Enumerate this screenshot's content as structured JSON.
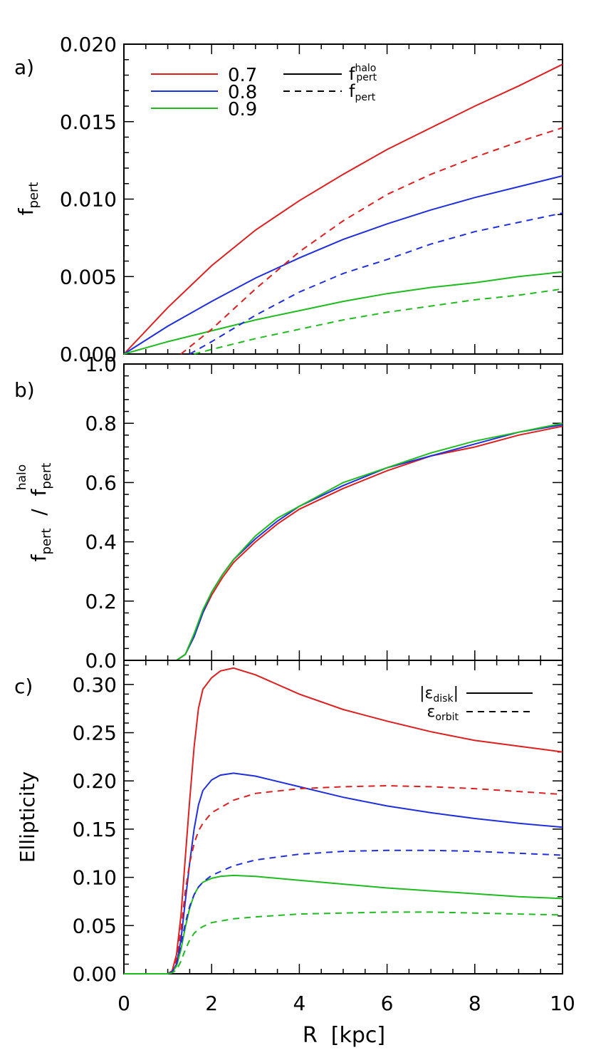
{
  "figure": {
    "xlabel": "R  [kpc]",
    "xlim": [
      0,
      10
    ],
    "xticks": [
      "0",
      "2",
      "4",
      "6",
      "8",
      "10"
    ]
  },
  "colors": {
    "0.7": "#dd1f1f",
    "0.8": "#1f2fdd",
    "0.9": "#1fbb1f"
  },
  "chart_data": [
    {
      "panel_label": "a)",
      "type": "line",
      "ylabel": "f_pert",
      "ylabel_main": "f",
      "ylabel_sub": "pert",
      "ylim": [
        0.0,
        0.02
      ],
      "yticks": [
        "0.000",
        "0.005",
        "0.010",
        "0.015",
        "0.020"
      ],
      "legend": {
        "colors": [
          {
            "label": "0.7",
            "color": "#dd1f1f"
          },
          {
            "label": "0.8",
            "color": "#1f2fdd"
          },
          {
            "label": "0.9",
            "color": "#1fbb1f"
          }
        ],
        "styles": [
          {
            "main": "f",
            "sup": "halo",
            "sub": "pert",
            "dash": "solid"
          },
          {
            "main": "f",
            "sup": "",
            "sub": "pert",
            "dash": "dashed"
          }
        ],
        "placement": "top-left"
      },
      "series": [
        {
          "name": "0.7",
          "style": "solid",
          "x": [
            0,
            1,
            2,
            3,
            4,
            5,
            6,
            7,
            8,
            9,
            10
          ],
          "y": [
            0,
            0.003,
            0.0057,
            0.008,
            0.0099,
            0.0116,
            0.0132,
            0.0146,
            0.016,
            0.0173,
            0.0187
          ]
        },
        {
          "name": "0.8",
          "style": "solid",
          "x": [
            0,
            1,
            2,
            3,
            4,
            5,
            6,
            7,
            8,
            9,
            10
          ],
          "y": [
            0,
            0.0018,
            0.0034,
            0.0049,
            0.0062,
            0.0074,
            0.0084,
            0.0093,
            0.0101,
            0.0108,
            0.0115
          ]
        },
        {
          "name": "0.9",
          "style": "solid",
          "x": [
            0,
            1,
            2,
            3,
            4,
            5,
            6,
            7,
            8,
            9,
            10
          ],
          "y": [
            0,
            0.0008,
            0.0015,
            0.0022,
            0.0028,
            0.0034,
            0.0039,
            0.0043,
            0.0046,
            0.005,
            0.0053
          ]
        },
        {
          "name": "0.7",
          "style": "dashed",
          "x": [
            1.3,
            2,
            3,
            4,
            5,
            6,
            7,
            8,
            9,
            10
          ],
          "y": [
            0,
            0.0016,
            0.0042,
            0.0066,
            0.0086,
            0.0103,
            0.0116,
            0.0127,
            0.0137,
            0.0146
          ]
        },
        {
          "name": "0.8",
          "style": "dashed",
          "x": [
            1.5,
            2,
            3,
            4,
            5,
            6,
            7,
            8,
            9,
            10
          ],
          "y": [
            0,
            0.0008,
            0.0025,
            0.004,
            0.0052,
            0.0061,
            0.0071,
            0.0079,
            0.0085,
            0.0091
          ]
        },
        {
          "name": "0.9",
          "style": "dashed",
          "x": [
            1.6,
            2,
            3,
            4,
            5,
            6,
            7,
            8,
            9,
            10
          ],
          "y": [
            0,
            0.0003,
            0.001,
            0.0016,
            0.0022,
            0.0027,
            0.0031,
            0.0035,
            0.0038,
            0.0042
          ]
        }
      ]
    },
    {
      "panel_label": "b)",
      "type": "line",
      "ylabel": "f_pert / f_pert^halo",
      "ylim": [
        0.0,
        1.0
      ],
      "yticks": [
        "0.0",
        "0.2",
        "0.4",
        "0.6",
        "0.8",
        "1.0"
      ],
      "reference_line": 1.0,
      "series": [
        {
          "name": "0.7",
          "style": "solid",
          "x": [
            1.0,
            1.2,
            1.4,
            1.6,
            1.8,
            2.0,
            2.25,
            2.5,
            3.0,
            3.5,
            4.0,
            5.0,
            6.0,
            7.0,
            8.0,
            9.0,
            10.0
          ],
          "y": [
            0,
            0.0,
            0.02,
            0.08,
            0.16,
            0.22,
            0.28,
            0.33,
            0.4,
            0.46,
            0.51,
            0.58,
            0.64,
            0.69,
            0.72,
            0.76,
            0.79
          ]
        },
        {
          "name": "0.8",
          "style": "solid",
          "x": [
            1.0,
            1.2,
            1.4,
            1.6,
            1.8,
            2.0,
            2.25,
            2.5,
            3.0,
            3.5,
            4.0,
            5.0,
            6.0,
            7.0,
            8.0,
            9.0,
            10.0
          ],
          "y": [
            0,
            0.0,
            0.02,
            0.08,
            0.16,
            0.23,
            0.29,
            0.34,
            0.41,
            0.47,
            0.52,
            0.59,
            0.65,
            0.69,
            0.73,
            0.77,
            0.795
          ]
        },
        {
          "name": "0.9",
          "style": "solid",
          "x": [
            1.0,
            1.2,
            1.4,
            1.6,
            1.8,
            2.0,
            2.25,
            2.5,
            3.0,
            3.5,
            4.0,
            5.0,
            6.0,
            7.0,
            8.0,
            9.0,
            10.0
          ],
          "y": [
            0,
            0.0,
            0.02,
            0.09,
            0.17,
            0.23,
            0.29,
            0.34,
            0.42,
            0.48,
            0.52,
            0.6,
            0.65,
            0.7,
            0.74,
            0.77,
            0.8
          ]
        }
      ]
    },
    {
      "panel_label": "c)",
      "type": "line",
      "ylabel": "Ellipticity",
      "ylim": [
        0.0,
        0.325
      ],
      "yticks": [
        "0.00",
        "0.05",
        "0.10",
        "0.15",
        "0.20",
        "0.25",
        "0.30"
      ],
      "legend": {
        "styles": [
          {
            "label": "|ε_disk|",
            "main": "|ε",
            "sub": "disk",
            "tail": "|",
            "dash": "solid"
          },
          {
            "label": "ε_orbit",
            "main": "ε",
            "sub": "orbit",
            "tail": "",
            "dash": "dashed"
          }
        ],
        "placement": "top-right"
      },
      "series": [
        {
          "name": "0.7",
          "style": "solid",
          "x": [
            0,
            1.0,
            1.1,
            1.2,
            1.3,
            1.4,
            1.5,
            1.6,
            1.7,
            1.8,
            2.0,
            2.2,
            2.5,
            3.0,
            4.0,
            5.0,
            6.0,
            7.0,
            8.0,
            9.0,
            10.0
          ],
          "y": [
            0,
            0,
            0.003,
            0.02,
            0.06,
            0.12,
            0.18,
            0.235,
            0.275,
            0.295,
            0.307,
            0.314,
            0.317,
            0.31,
            0.29,
            0.274,
            0.262,
            0.251,
            0.242,
            0.236,
            0.23
          ]
        },
        {
          "name": "0.8",
          "style": "solid",
          "x": [
            0,
            1.0,
            1.1,
            1.2,
            1.3,
            1.4,
            1.5,
            1.6,
            1.7,
            1.8,
            2.0,
            2.2,
            2.5,
            3.0,
            4.0,
            5.0,
            6.0,
            7.0,
            8.0,
            9.0,
            10.0
          ],
          "y": [
            0,
            0,
            0.002,
            0.01,
            0.035,
            0.075,
            0.115,
            0.15,
            0.175,
            0.19,
            0.201,
            0.206,
            0.208,
            0.205,
            0.194,
            0.183,
            0.174,
            0.167,
            0.161,
            0.156,
            0.152
          ]
        },
        {
          "name": "0.9",
          "style": "solid",
          "x": [
            0,
            1.0,
            1.1,
            1.2,
            1.3,
            1.4,
            1.5,
            1.6,
            1.7,
            1.8,
            2.0,
            2.2,
            2.5,
            3.0,
            4.0,
            5.0,
            6.0,
            7.0,
            8.0,
            9.0,
            10.0
          ],
          "y": [
            0,
            0,
            0.002,
            0.008,
            0.025,
            0.048,
            0.068,
            0.082,
            0.09,
            0.095,
            0.099,
            0.101,
            0.102,
            0.101,
            0.097,
            0.093,
            0.089,
            0.086,
            0.083,
            0.08,
            0.078
          ]
        },
        {
          "name": "0.7",
          "style": "dashed",
          "x": [
            0,
            1.0,
            1.1,
            1.2,
            1.3,
            1.4,
            1.5,
            1.6,
            1.7,
            1.8,
            2.0,
            2.5,
            3.0,
            4.0,
            5.0,
            6.0,
            7.0,
            8.0,
            9.0,
            10.0
          ],
          "y": [
            0,
            0,
            0.003,
            0.015,
            0.045,
            0.085,
            0.115,
            0.135,
            0.148,
            0.156,
            0.167,
            0.18,
            0.187,
            0.192,
            0.194,
            0.195,
            0.194,
            0.192,
            0.189,
            0.186
          ]
        },
        {
          "name": "0.8",
          "style": "dashed",
          "x": [
            0,
            1.0,
            1.1,
            1.2,
            1.3,
            1.4,
            1.5,
            1.6,
            1.7,
            1.8,
            2.0,
            2.5,
            3.0,
            4.0,
            5.0,
            6.0,
            7.0,
            8.0,
            9.0,
            10.0
          ],
          "y": [
            0,
            0,
            0.002,
            0.01,
            0.03,
            0.052,
            0.07,
            0.082,
            0.09,
            0.095,
            0.102,
            0.112,
            0.118,
            0.124,
            0.127,
            0.128,
            0.128,
            0.127,
            0.125,
            0.123
          ]
        },
        {
          "name": "0.9",
          "style": "dashed",
          "x": [
            0,
            1.0,
            1.1,
            1.2,
            1.3,
            1.4,
            1.5,
            1.6,
            1.7,
            1.8,
            2.0,
            2.5,
            3.0,
            4.0,
            5.0,
            6.0,
            7.0,
            8.0,
            9.0,
            10.0
          ],
          "y": [
            0,
            0,
            0.001,
            0.004,
            0.013,
            0.025,
            0.035,
            0.042,
            0.046,
            0.049,
            0.053,
            0.057,
            0.059,
            0.062,
            0.063,
            0.064,
            0.064,
            0.063,
            0.062,
            0.061
          ]
        }
      ]
    }
  ]
}
